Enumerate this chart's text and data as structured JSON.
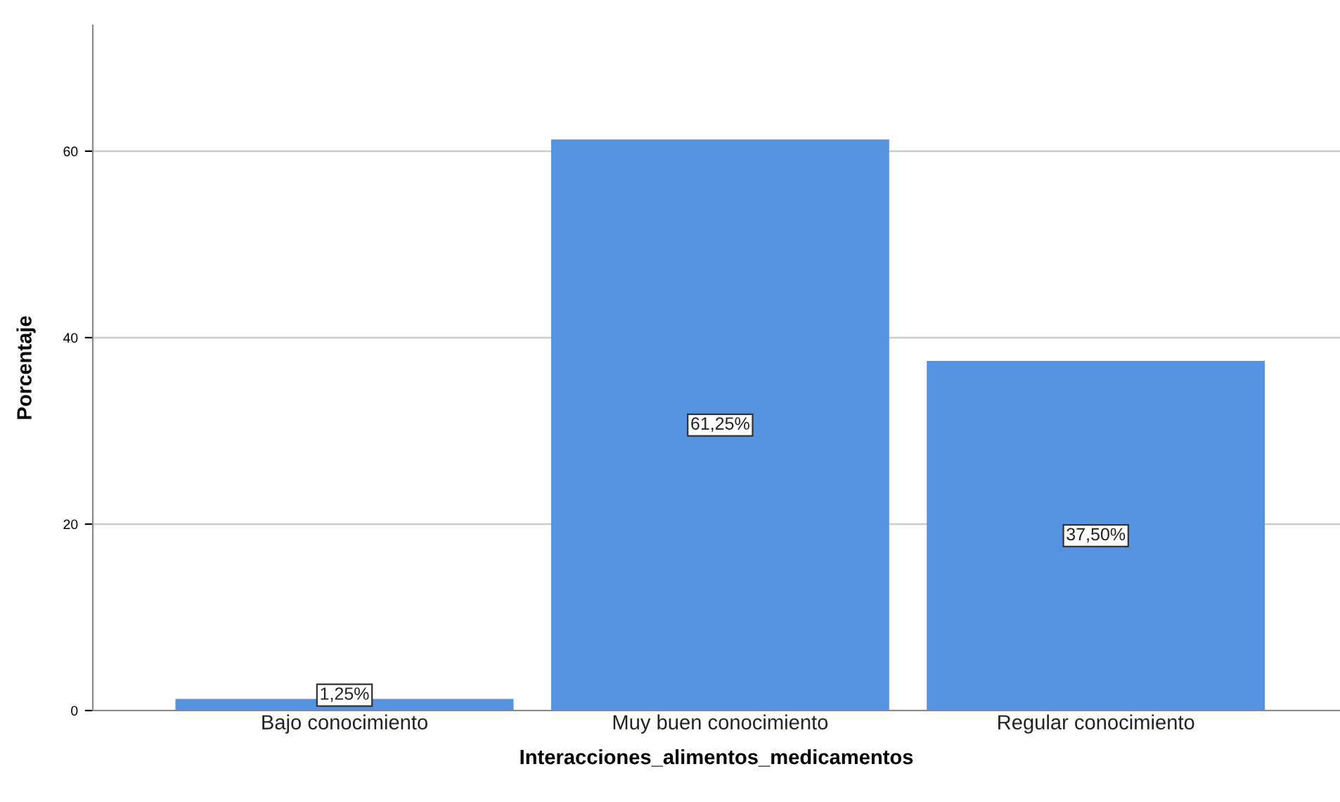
{
  "chart_data": {
    "type": "bar",
    "xlabel": "Interacciones_alimentos_medicamentos",
    "ylabel": "Porcentaje",
    "categories": [
      "Bajo conocimiento",
      "Muy buen conocimiento",
      "Regular conocimiento"
    ],
    "values": [
      1.25,
      61.25,
      37.5
    ],
    "value_labels": [
      "1,25%",
      "61,25%",
      "37,50%"
    ],
    "color": "#5592e0",
    "ylim": [
      0,
      73.5
    ],
    "yticks": [
      0,
      20,
      40,
      60
    ],
    "grid": "y"
  }
}
